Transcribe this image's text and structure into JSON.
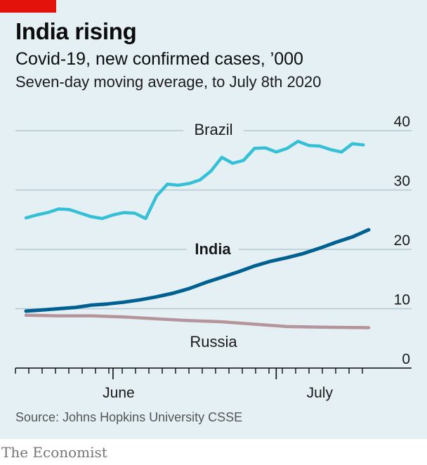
{
  "header": {
    "title": "India rising",
    "subtitle": "Covid-19, new confirmed cases, ’000",
    "note": "Seven-day moving average, to July 8th 2020"
  },
  "footer": {
    "source": "Source: Johns Hopkins University CSSE",
    "brand": "The Economist"
  },
  "colors": {
    "panel": "#e5f0f5",
    "brand_red": "#e3120b",
    "brazil": "#36c0d8",
    "india": "#006092",
    "russia": "#b5949c",
    "grid": "#b4c8d2"
  },
  "chart_data": {
    "type": "line",
    "title": "Covid-19, new confirmed cases, ’000",
    "ylabel": "",
    "ylim": [
      0,
      40
    ],
    "yticks": [
      0,
      10,
      20,
      30,
      40
    ],
    "x_start": "2020-05-16",
    "x_end": "2020-07-08",
    "xtick_labels": [
      {
        "label": "June",
        "date": "2020-06-01"
      },
      {
        "label": "July",
        "date": "2020-07-01"
      }
    ],
    "series": [
      {
        "name": "Brazil",
        "color": "#36c0d8",
        "points": [
          [
            "2020-05-16",
            25.3
          ],
          [
            "2020-05-18",
            25.8
          ],
          [
            "2020-05-20",
            26.2
          ],
          [
            "2020-05-22",
            26.8
          ],
          [
            "2020-05-24",
            26.7
          ],
          [
            "2020-05-26",
            26.1
          ],
          [
            "2020-05-28",
            25.5
          ],
          [
            "2020-05-30",
            25.2
          ],
          [
            "2020-06-01",
            25.8
          ],
          [
            "2020-06-03",
            26.2
          ],
          [
            "2020-06-05",
            26.1
          ],
          [
            "2020-06-07",
            25.2
          ],
          [
            "2020-06-09",
            29.0
          ],
          [
            "2020-06-11",
            31.0
          ],
          [
            "2020-06-13",
            30.8
          ],
          [
            "2020-06-15",
            31.1
          ],
          [
            "2020-06-17",
            31.7
          ],
          [
            "2020-06-19",
            33.2
          ],
          [
            "2020-06-21",
            35.5
          ],
          [
            "2020-06-23",
            34.5
          ],
          [
            "2020-06-25",
            35.0
          ],
          [
            "2020-06-27",
            37.0
          ],
          [
            "2020-06-29",
            37.1
          ],
          [
            "2020-07-01",
            36.4
          ],
          [
            "2020-07-03",
            37.0
          ],
          [
            "2020-07-05",
            38.2
          ],
          [
            "2020-07-07",
            37.5
          ],
          [
            "2020-07-09",
            37.4
          ],
          [
            "2020-07-11",
            36.8
          ],
          [
            "2020-07-13",
            36.4
          ],
          [
            "2020-07-15",
            37.8
          ],
          [
            "2020-07-17",
            37.6
          ]
        ]
      },
      {
        "name": "India",
        "color": "#006092",
        "points": [
          [
            "2020-05-16",
            9.6
          ],
          [
            "2020-05-19",
            9.8
          ],
          [
            "2020-05-22",
            10.0
          ],
          [
            "2020-05-25",
            10.2
          ],
          [
            "2020-05-28",
            10.6
          ],
          [
            "2020-05-31",
            10.8
          ],
          [
            "2020-06-03",
            11.1
          ],
          [
            "2020-06-06",
            11.5
          ],
          [
            "2020-06-09",
            12.0
          ],
          [
            "2020-06-12",
            12.6
          ],
          [
            "2020-06-15",
            13.4
          ],
          [
            "2020-06-18",
            14.4
          ],
          [
            "2020-06-21",
            15.3
          ],
          [
            "2020-06-24",
            16.2
          ],
          [
            "2020-06-27",
            17.2
          ],
          [
            "2020-06-30",
            18.0
          ],
          [
            "2020-07-03",
            18.6
          ],
          [
            "2020-07-06",
            19.3
          ],
          [
            "2020-07-09",
            20.2
          ],
          [
            "2020-07-12",
            21.2
          ],
          [
            "2020-07-15",
            22.1
          ],
          [
            "2020-07-18",
            23.3
          ]
        ]
      },
      {
        "name": "Russia",
        "color": "#b5949c",
        "points": [
          [
            "2020-05-16",
            8.9
          ],
          [
            "2020-05-22",
            8.8
          ],
          [
            "2020-05-28",
            8.8
          ],
          [
            "2020-06-03",
            8.6
          ],
          [
            "2020-06-09",
            8.3
          ],
          [
            "2020-06-15",
            8.0
          ],
          [
            "2020-06-21",
            7.8
          ],
          [
            "2020-06-27",
            7.4
          ],
          [
            "2020-07-03",
            7.0
          ],
          [
            "2020-07-09",
            6.9
          ],
          [
            "2020-07-18",
            6.8
          ]
        ]
      }
    ]
  }
}
